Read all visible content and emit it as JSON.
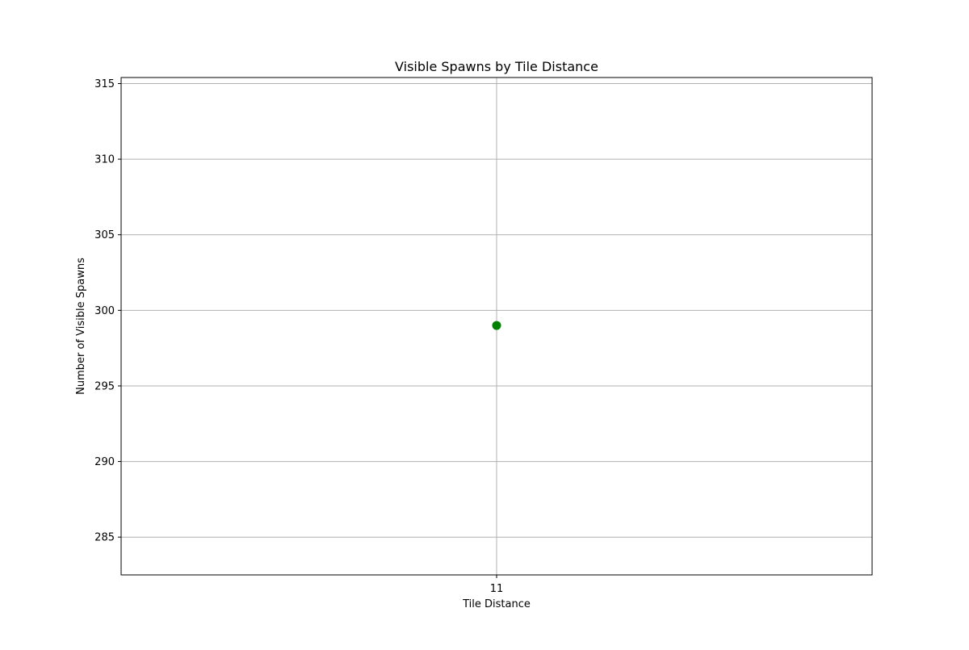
{
  "chart_data": {
    "type": "scatter",
    "title": "Visible Spawns by Tile Distance",
    "xlabel": "Tile Distance",
    "ylabel": "Number of Visible Spawns",
    "x": [
      11
    ],
    "series": [
      {
        "values": [
          299
        ],
        "color": "#008000"
      }
    ],
    "x_ticks": [
      "11"
    ],
    "y_ticks": [
      285,
      290,
      295,
      300,
      305,
      310,
      315
    ],
    "ylim": [
      282.5,
      315.4
    ],
    "grid": true
  },
  "colors": {
    "grid": "#b0b0b0",
    "axes": "#000000",
    "marker": "#008000"
  }
}
